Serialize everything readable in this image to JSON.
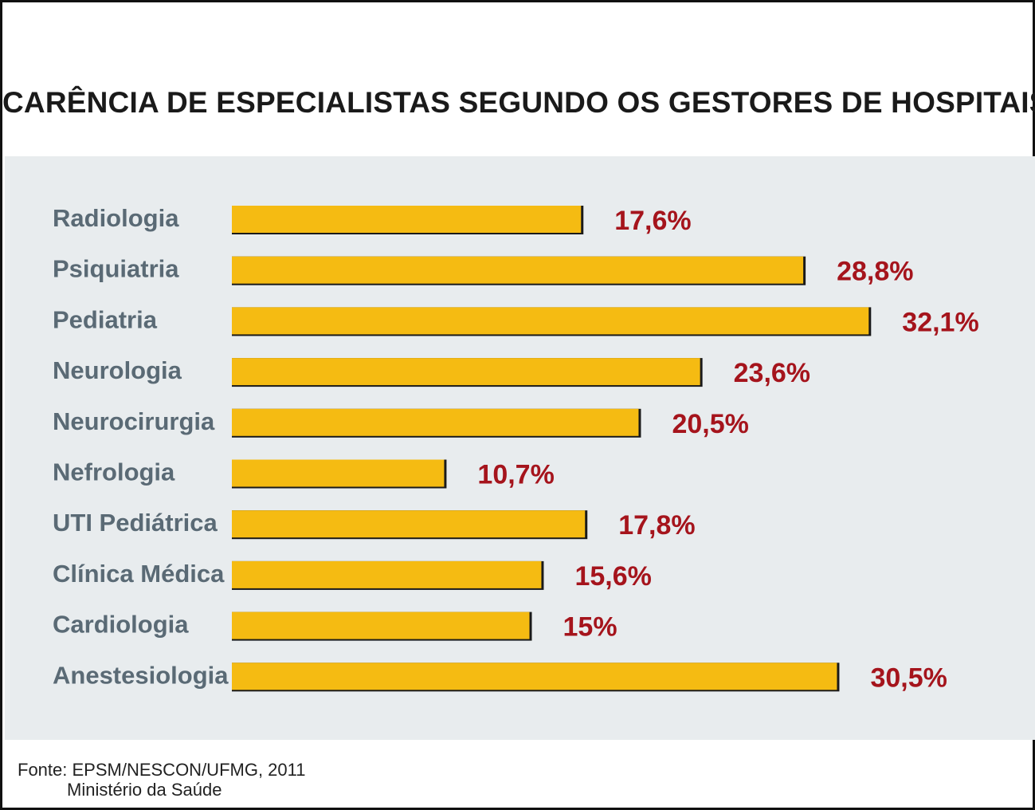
{
  "chart_data": {
    "type": "bar",
    "orientation": "horizontal",
    "title": "CARÊNCIA DE ESPECIALISTAS SEGUNDO OS GESTORES DE HOSPITAIS",
    "categories": [
      "Radiologia",
      "Psiquiatria",
      "Pediatria",
      "Neurologia",
      "Neurocirurgia",
      "Nefrologia",
      "UTI Pediátrica",
      "Clínica Médica",
      "Cardiologia",
      "Anestesiologia"
    ],
    "values": [
      17.6,
      28.8,
      32.1,
      23.6,
      20.5,
      10.7,
      17.8,
      15.6,
      15,
      30.5
    ],
    "value_labels": [
      "17,6%",
      "28,8%",
      "32,1%",
      "23,6%",
      "20,5%",
      "10,7%",
      "17,8%",
      "15,6%",
      "15%",
      "30,5%"
    ],
    "xlim": [
      0,
      32.1
    ],
    "grid": false,
    "legend": "none",
    "colors": {
      "bar": "#f5bb12",
      "bar_shadow": "#1a1a1a",
      "category_text": "#5a6a75",
      "value_text": "#a5141c",
      "panel_background": "#e8ecee"
    }
  },
  "source": {
    "line1": "Fonte: EPSM/NESCON/UFMG, 2011",
    "line2": "Ministério da Saúde"
  }
}
